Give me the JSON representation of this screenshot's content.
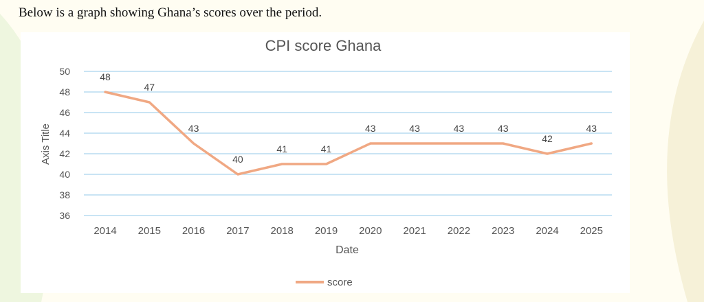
{
  "document": {
    "intro_text": "Below is a graph showing Ghana’s scores over the period."
  },
  "chart_data": {
    "type": "line",
    "title": "CPI score Ghana",
    "xlabel": "Date",
    "ylabel": "Axis Title",
    "categories": [
      "2014",
      "2015",
      "2016",
      "2017",
      "2018",
      "2019",
      "2020",
      "2021",
      "2022",
      "2023",
      "2024",
      "2025"
    ],
    "series": [
      {
        "name": "score",
        "values": [
          48,
          47,
          43,
          40,
          41,
          41,
          43,
          43,
          43,
          43,
          42,
          43
        ],
        "color": "#f0a883"
      }
    ],
    "y_ticks": [
      36,
      38,
      40,
      42,
      44,
      46,
      48,
      50
    ],
    "ylim": [
      36,
      50
    ],
    "grid": true,
    "grid_color": "#a9d3ee",
    "data_labels": true,
    "legend_position": "bottom"
  }
}
